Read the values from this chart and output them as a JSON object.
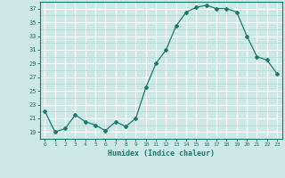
{
  "x": [
    0,
    1,
    2,
    3,
    4,
    5,
    6,
    7,
    8,
    9,
    10,
    11,
    12,
    13,
    14,
    15,
    16,
    17,
    18,
    19,
    20,
    21,
    22,
    23
  ],
  "y": [
    22,
    19,
    19.5,
    21.5,
    20.5,
    20,
    19.2,
    20.5,
    19.8,
    21,
    25.5,
    29,
    31,
    34.5,
    36.5,
    37.2,
    37.5,
    37,
    37,
    36.5,
    33,
    30,
    29.5,
    27.5
  ],
  "xlabel": "Humidex (Indice chaleur)",
  "line_color": "#1a7a6e",
  "bg_color": "#cde8e5",
  "grid_major_color": "#ffffff",
  "grid_minor_color": "#b0d8d4",
  "ylim": [
    18,
    38
  ],
  "xlim": [
    -0.5,
    23.5
  ],
  "yticks": [
    19,
    21,
    23,
    25,
    27,
    29,
    31,
    33,
    35,
    37
  ],
  "xticks": [
    0,
    1,
    2,
    3,
    4,
    5,
    6,
    7,
    8,
    9,
    10,
    11,
    12,
    13,
    14,
    15,
    16,
    17,
    18,
    19,
    20,
    21,
    22,
    23
  ]
}
